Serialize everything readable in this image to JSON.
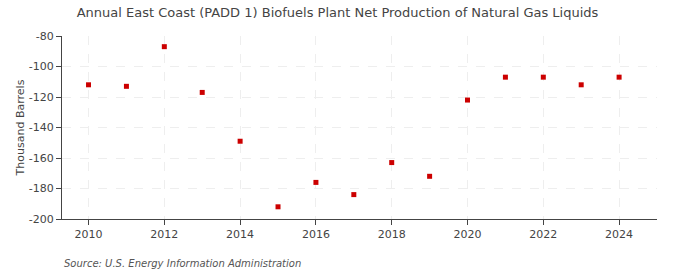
{
  "chart_data": {
    "type": "scatter",
    "title": "Annual East Coast (PADD 1) Biofuels Plant Net Production of Natural Gas Liquids",
    "ylabel": "Thousand Barrels",
    "annotation": "Source: U.S. Energy Information Administration",
    "x": [
      2010,
      2011,
      2012,
      2013,
      2014,
      2015,
      2016,
      2017,
      2018,
      2019,
      2020,
      2021,
      2022,
      2023,
      2024
    ],
    "values": [
      -112,
      -113,
      -87,
      -117,
      -149,
      -192,
      -176,
      -184,
      -163,
      -172,
      -122,
      -107,
      -107,
      -112,
      -107
    ],
    "color": "#cc0000",
    "marker": "square",
    "xlim": [
      2009.3,
      2025.0
    ],
    "xticks": [
      2010,
      2012,
      2014,
      2016,
      2018,
      2020,
      2022,
      2024
    ],
    "ylim": [
      -200,
      -80
    ],
    "yticks": [
      -200,
      -180,
      -160,
      -140,
      -120,
      -100,
      -80
    ],
    "grid": true
  }
}
